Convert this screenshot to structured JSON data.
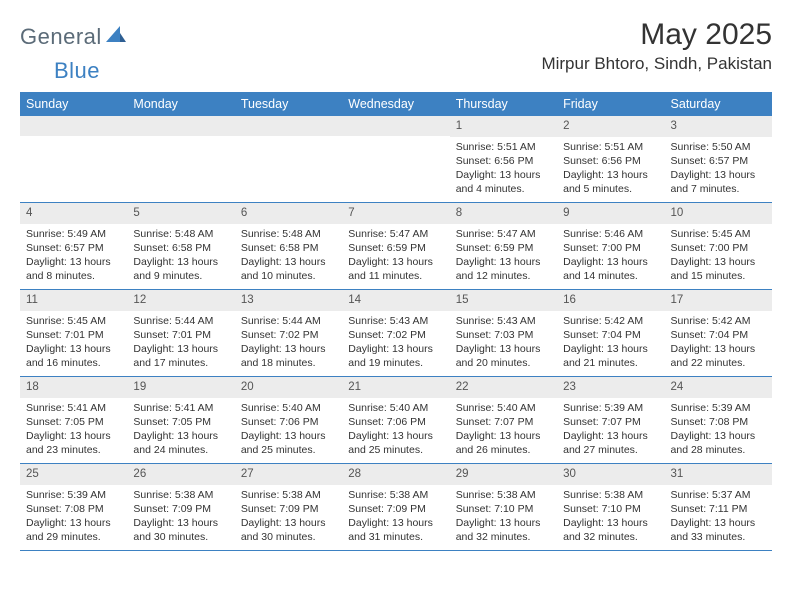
{
  "logo": {
    "text_general": "General",
    "text_blue": "Blue"
  },
  "title": "May 2025",
  "location": "Mirpur Bhtoro, Sindh, Pakistan",
  "colors": {
    "header_bar": "#3d81c2",
    "daynum_bg": "#ececec",
    "text": "#333333",
    "logo_gray": "#5b6b78",
    "logo_blue": "#3d81c2",
    "rule": "#3d81c2",
    "background": "#ffffff"
  },
  "weekdays": [
    "Sunday",
    "Monday",
    "Tuesday",
    "Wednesday",
    "Thursday",
    "Friday",
    "Saturday"
  ],
  "weeks": [
    [
      null,
      null,
      null,
      null,
      {
        "n": "1",
        "sunrise": "Sunrise: 5:51 AM",
        "sunset": "Sunset: 6:56 PM",
        "daylight": "Daylight: 13 hours and 4 minutes."
      },
      {
        "n": "2",
        "sunrise": "Sunrise: 5:51 AM",
        "sunset": "Sunset: 6:56 PM",
        "daylight": "Daylight: 13 hours and 5 minutes."
      },
      {
        "n": "3",
        "sunrise": "Sunrise: 5:50 AM",
        "sunset": "Sunset: 6:57 PM",
        "daylight": "Daylight: 13 hours and 7 minutes."
      }
    ],
    [
      {
        "n": "4",
        "sunrise": "Sunrise: 5:49 AM",
        "sunset": "Sunset: 6:57 PM",
        "daylight": "Daylight: 13 hours and 8 minutes."
      },
      {
        "n": "5",
        "sunrise": "Sunrise: 5:48 AM",
        "sunset": "Sunset: 6:58 PM",
        "daylight": "Daylight: 13 hours and 9 minutes."
      },
      {
        "n": "6",
        "sunrise": "Sunrise: 5:48 AM",
        "sunset": "Sunset: 6:58 PM",
        "daylight": "Daylight: 13 hours and 10 minutes."
      },
      {
        "n": "7",
        "sunrise": "Sunrise: 5:47 AM",
        "sunset": "Sunset: 6:59 PM",
        "daylight": "Daylight: 13 hours and 11 minutes."
      },
      {
        "n": "8",
        "sunrise": "Sunrise: 5:47 AM",
        "sunset": "Sunset: 6:59 PM",
        "daylight": "Daylight: 13 hours and 12 minutes."
      },
      {
        "n": "9",
        "sunrise": "Sunrise: 5:46 AM",
        "sunset": "Sunset: 7:00 PM",
        "daylight": "Daylight: 13 hours and 14 minutes."
      },
      {
        "n": "10",
        "sunrise": "Sunrise: 5:45 AM",
        "sunset": "Sunset: 7:00 PM",
        "daylight": "Daylight: 13 hours and 15 minutes."
      }
    ],
    [
      {
        "n": "11",
        "sunrise": "Sunrise: 5:45 AM",
        "sunset": "Sunset: 7:01 PM",
        "daylight": "Daylight: 13 hours and 16 minutes."
      },
      {
        "n": "12",
        "sunrise": "Sunrise: 5:44 AM",
        "sunset": "Sunset: 7:01 PM",
        "daylight": "Daylight: 13 hours and 17 minutes."
      },
      {
        "n": "13",
        "sunrise": "Sunrise: 5:44 AM",
        "sunset": "Sunset: 7:02 PM",
        "daylight": "Daylight: 13 hours and 18 minutes."
      },
      {
        "n": "14",
        "sunrise": "Sunrise: 5:43 AM",
        "sunset": "Sunset: 7:02 PM",
        "daylight": "Daylight: 13 hours and 19 minutes."
      },
      {
        "n": "15",
        "sunrise": "Sunrise: 5:43 AM",
        "sunset": "Sunset: 7:03 PM",
        "daylight": "Daylight: 13 hours and 20 minutes."
      },
      {
        "n": "16",
        "sunrise": "Sunrise: 5:42 AM",
        "sunset": "Sunset: 7:04 PM",
        "daylight": "Daylight: 13 hours and 21 minutes."
      },
      {
        "n": "17",
        "sunrise": "Sunrise: 5:42 AM",
        "sunset": "Sunset: 7:04 PM",
        "daylight": "Daylight: 13 hours and 22 minutes."
      }
    ],
    [
      {
        "n": "18",
        "sunrise": "Sunrise: 5:41 AM",
        "sunset": "Sunset: 7:05 PM",
        "daylight": "Daylight: 13 hours and 23 minutes."
      },
      {
        "n": "19",
        "sunrise": "Sunrise: 5:41 AM",
        "sunset": "Sunset: 7:05 PM",
        "daylight": "Daylight: 13 hours and 24 minutes."
      },
      {
        "n": "20",
        "sunrise": "Sunrise: 5:40 AM",
        "sunset": "Sunset: 7:06 PM",
        "daylight": "Daylight: 13 hours and 25 minutes."
      },
      {
        "n": "21",
        "sunrise": "Sunrise: 5:40 AM",
        "sunset": "Sunset: 7:06 PM",
        "daylight": "Daylight: 13 hours and 25 minutes."
      },
      {
        "n": "22",
        "sunrise": "Sunrise: 5:40 AM",
        "sunset": "Sunset: 7:07 PM",
        "daylight": "Daylight: 13 hours and 26 minutes."
      },
      {
        "n": "23",
        "sunrise": "Sunrise: 5:39 AM",
        "sunset": "Sunset: 7:07 PM",
        "daylight": "Daylight: 13 hours and 27 minutes."
      },
      {
        "n": "24",
        "sunrise": "Sunrise: 5:39 AM",
        "sunset": "Sunset: 7:08 PM",
        "daylight": "Daylight: 13 hours and 28 minutes."
      }
    ],
    [
      {
        "n": "25",
        "sunrise": "Sunrise: 5:39 AM",
        "sunset": "Sunset: 7:08 PM",
        "daylight": "Daylight: 13 hours and 29 minutes."
      },
      {
        "n": "26",
        "sunrise": "Sunrise: 5:38 AM",
        "sunset": "Sunset: 7:09 PM",
        "daylight": "Daylight: 13 hours and 30 minutes."
      },
      {
        "n": "27",
        "sunrise": "Sunrise: 5:38 AM",
        "sunset": "Sunset: 7:09 PM",
        "daylight": "Daylight: 13 hours and 30 minutes."
      },
      {
        "n": "28",
        "sunrise": "Sunrise: 5:38 AM",
        "sunset": "Sunset: 7:09 PM",
        "daylight": "Daylight: 13 hours and 31 minutes."
      },
      {
        "n": "29",
        "sunrise": "Sunrise: 5:38 AM",
        "sunset": "Sunset: 7:10 PM",
        "daylight": "Daylight: 13 hours and 32 minutes."
      },
      {
        "n": "30",
        "sunrise": "Sunrise: 5:38 AM",
        "sunset": "Sunset: 7:10 PM",
        "daylight": "Daylight: 13 hours and 32 minutes."
      },
      {
        "n": "31",
        "sunrise": "Sunrise: 5:37 AM",
        "sunset": "Sunset: 7:11 PM",
        "daylight": "Daylight: 13 hours and 33 minutes."
      }
    ]
  ]
}
